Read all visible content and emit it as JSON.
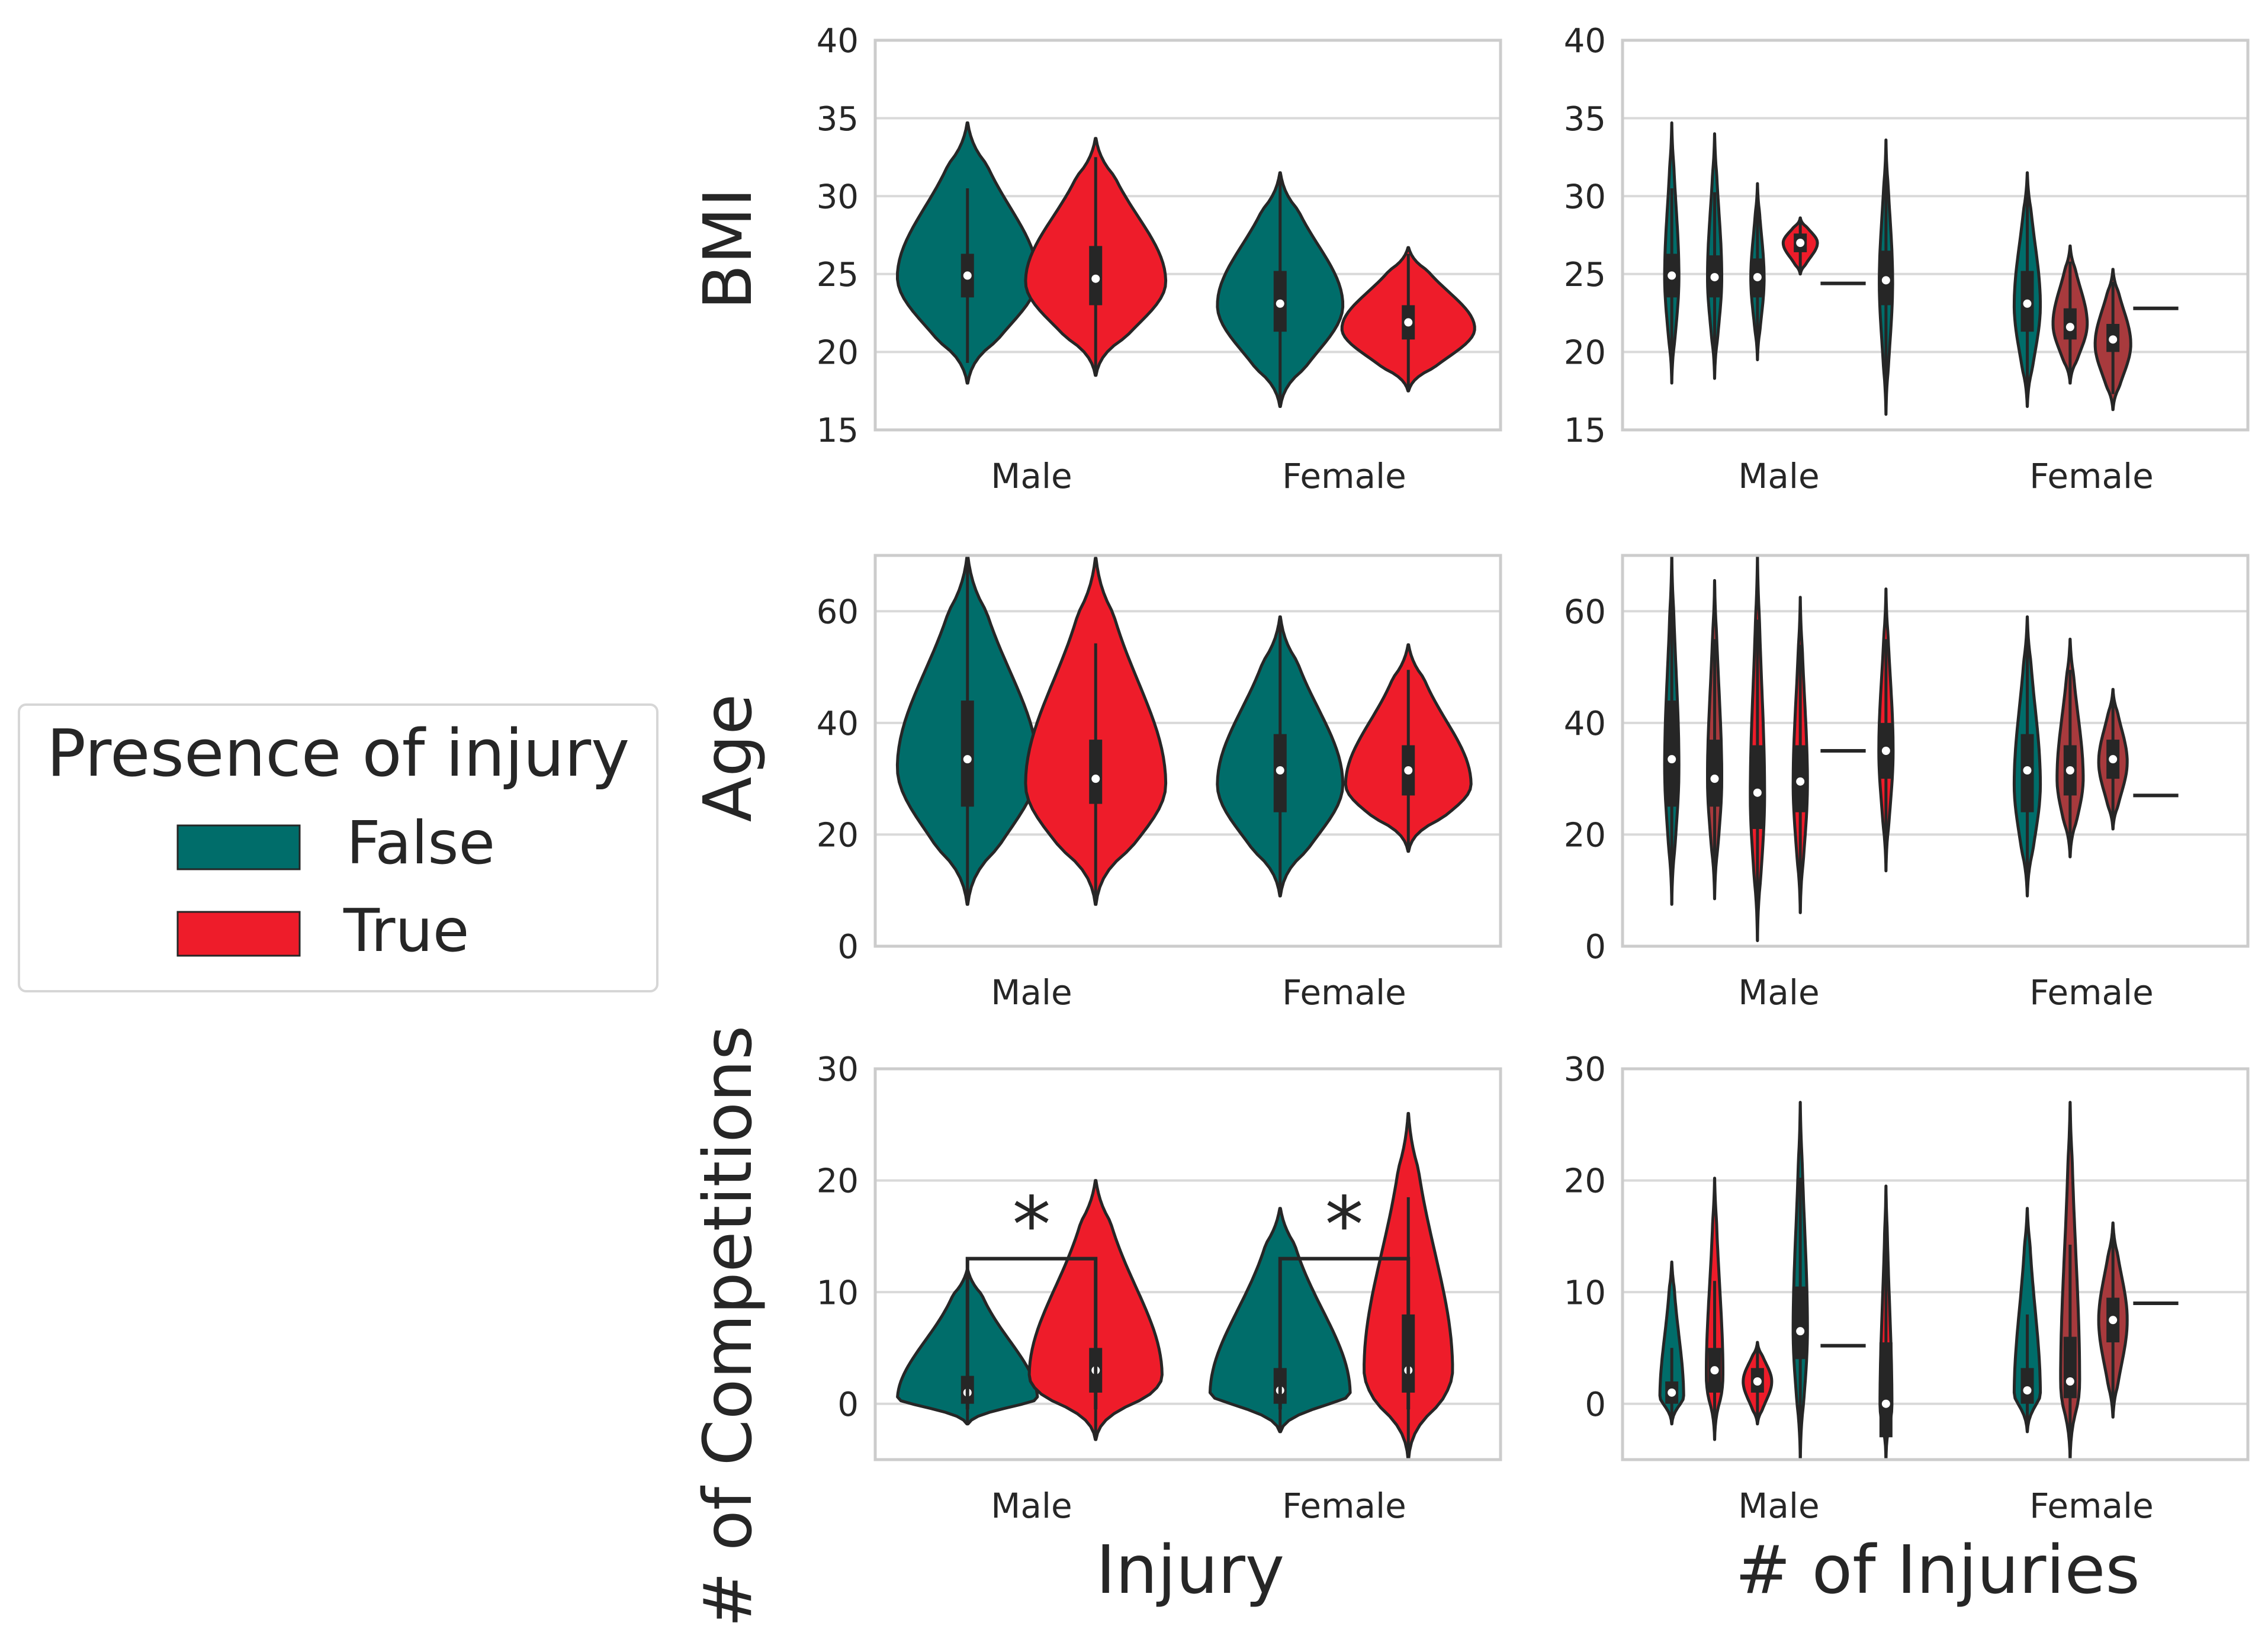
{
  "figure": {
    "colors": {
      "false": "#006d6a",
      "true": "#ee1c2a",
      "mixed": "#a83a3d",
      "grid": "#d9d9d9",
      "axis_frame": "#cccccc",
      "text": "#262626",
      "violin_edge": "#262626"
    },
    "legend": {
      "title": "Presence of injury",
      "items": [
        {
          "label": "False",
          "color_key": "false"
        },
        {
          "label": "True",
          "color_key": "true"
        }
      ]
    },
    "column_labels": [
      "Injury",
      "# of Injuries"
    ],
    "row_labels": [
      "BMI",
      "Age",
      "# of Competitions"
    ]
  },
  "chart_data": [
    {
      "type": "violin",
      "row": 0,
      "col": 0,
      "ylabel": "BMI",
      "xlabel": "",
      "categories": [
        "Male",
        "Female"
      ],
      "ylim": [
        15,
        40
      ],
      "yticks": [
        15,
        20,
        25,
        30,
        35,
        40
      ],
      "series": [
        {
          "name": "False",
          "color_key": "false",
          "values": [
            {
              "category": "Male",
              "min": 18,
              "max": 34.7,
              "mode": 24.8,
              "width": 0.95,
              "q1": 23.5,
              "median": 24.9,
              "q3": 26.3
            },
            {
              "category": "Female",
              "min": 16.5,
              "max": 31.5,
              "mode": 23,
              "width": 0.85,
              "q1": 21.3,
              "median": 23.1,
              "q3": 25.2
            }
          ]
        },
        {
          "name": "True",
          "color_key": "true",
          "values": [
            {
              "category": "Male",
              "min": 18.5,
              "max": 33.7,
              "mode": 24.5,
              "width": 0.95,
              "q1": 23,
              "median": 24.7,
              "q3": 26.8
            },
            {
              "category": "Female",
              "min": 17.5,
              "max": 26.7,
              "mode": 21.5,
              "width": 0.9,
              "q1": 20.8,
              "median": 21.9,
              "q3": 23
            }
          ]
        }
      ]
    },
    {
      "type": "violin",
      "row": 0,
      "col": 1,
      "ylabel": "",
      "xlabel": "",
      "categories": [
        "Male",
        "Female"
      ],
      "ylim": [
        15,
        40
      ],
      "yticks": [
        15,
        20,
        25,
        30,
        35,
        40
      ],
      "violins": [
        {
          "category": "Male",
          "color_key": "false",
          "min": 18,
          "max": 34.7,
          "mode": 24.8,
          "width": 0.3,
          "q1": 23.5,
          "median": 24.9,
          "q3": 26.3
        },
        {
          "category": "Male",
          "color_key": "false",
          "min": 18.3,
          "max": 34,
          "mode": 24.8,
          "width": 0.3,
          "q1": 23.5,
          "median": 24.8,
          "q3": 26.2
        },
        {
          "category": "Male",
          "color_key": "false",
          "min": 19.5,
          "max": 30.8,
          "mode": 24.7,
          "width": 0.28,
          "q1": 23.5,
          "median": 24.8,
          "q3": 26
        },
        {
          "category": "Male",
          "color_key": "true",
          "min": 25,
          "max": 28.6,
          "mode": 27,
          "width": 0.72,
          "q1": 26.4,
          "median": 27,
          "q3": 27.6
        },
        {
          "category": "Male",
          "color_key": "true",
          "single_value": 24.4
        },
        {
          "category": "Male",
          "color_key": "false",
          "min": 16,
          "max": 33.6,
          "mode": 24.5,
          "width": 0.28,
          "q1": 23,
          "median": 24.6,
          "q3": 26.5
        },
        {
          "category": "Female",
          "color_key": "false",
          "min": 16.5,
          "max": 31.5,
          "mode": 23,
          "width": 0.55,
          "q1": 21.3,
          "median": 23.1,
          "q3": 25.2
        },
        {
          "category": "Female",
          "color_key": "mixed",
          "min": 18,
          "max": 26.8,
          "mode": 21.8,
          "width": 0.72,
          "q1": 20.8,
          "median": 21.6,
          "q3": 22.8
        },
        {
          "category": "Female",
          "color_key": "mixed",
          "min": 16.3,
          "max": 25.3,
          "mode": 20.5,
          "width": 0.75,
          "q1": 20,
          "median": 20.8,
          "q3": 21.8
        },
        {
          "category": "Female",
          "color_key": "mixed",
          "single_value": 22.8
        }
      ]
    },
    {
      "type": "violin",
      "row": 1,
      "col": 0,
      "ylabel": "Age",
      "xlabel": "",
      "categories": [
        "Male",
        "Female"
      ],
      "ylim": [
        0,
        70
      ],
      "yticks": [
        0,
        20,
        40,
        60
      ],
      "series": [
        {
          "name": "False",
          "color_key": "false",
          "values": [
            {
              "category": "Male",
              "min": 7.5,
              "max": 70,
              "mode": 32,
              "width": 0.95,
              "q1": 25,
              "median": 33.5,
              "q3": 44
            },
            {
              "category": "Female",
              "min": 9,
              "max": 59,
              "mode": 29,
              "width": 0.85,
              "q1": 24,
              "median": 31.5,
              "q3": 38
            }
          ]
        },
        {
          "name": "True",
          "color_key": "true",
          "values": [
            {
              "category": "Male",
              "min": 7.5,
              "max": 69.5,
              "mode": 29,
              "width": 0.95,
              "q1": 25.5,
              "median": 30,
              "q3": 37
            },
            {
              "category": "Female",
              "min": 17,
              "max": 54,
              "mode": 29,
              "width": 0.85,
              "q1": 27,
              "median": 31.5,
              "q3": 36
            }
          ]
        }
      ]
    },
    {
      "type": "violin",
      "row": 1,
      "col": 1,
      "ylabel": "",
      "xlabel": "",
      "categories": [
        "Male",
        "Female"
      ],
      "ylim": [
        0,
        70
      ],
      "yticks": [
        0,
        20,
        40,
        60
      ],
      "violins": [
        {
          "category": "Male",
          "color_key": "false",
          "min": 7.5,
          "max": 70,
          "mode": 32,
          "width": 0.3,
          "q1": 25,
          "median": 33.5,
          "q3": 44
        },
        {
          "category": "Male",
          "color_key": "mixed",
          "min": 8.5,
          "max": 65.5,
          "mode": 30,
          "width": 0.3,
          "q1": 25,
          "median": 30,
          "q3": 37
        },
        {
          "category": "Male",
          "color_key": "true",
          "min": 1,
          "max": 70,
          "mode": 27,
          "width": 0.3,
          "q1": 21,
          "median": 27.5,
          "q3": 36
        },
        {
          "category": "Male",
          "color_key": "true",
          "min": 6,
          "max": 62.5,
          "mode": 29,
          "width": 0.3,
          "q1": 24,
          "median": 29.5,
          "q3": 36
        },
        {
          "category": "Male",
          "color_key": "true",
          "single_value": 35
        },
        {
          "category": "Male",
          "color_key": "true",
          "min": 13.5,
          "max": 64,
          "mode": 35,
          "width": 0.3,
          "q1": 30,
          "median": 35,
          "q3": 40
        },
        {
          "category": "Female",
          "color_key": "false",
          "min": 9,
          "max": 59,
          "mode": 29,
          "width": 0.55,
          "q1": 24,
          "median": 31.5,
          "q3": 38
        },
        {
          "category": "Female",
          "color_key": "mixed",
          "min": 16,
          "max": 55,
          "mode": 30,
          "width": 0.55,
          "q1": 27,
          "median": 31.5,
          "q3": 36
        },
        {
          "category": "Female",
          "color_key": "mixed",
          "min": 21,
          "max": 46,
          "mode": 33,
          "width": 0.6,
          "q1": 30,
          "median": 33.5,
          "q3": 37
        },
        {
          "category": "Female",
          "color_key": "mixed",
          "single_value": 27
        }
      ]
    },
    {
      "type": "violin",
      "row": 2,
      "col": 0,
      "ylabel": "# of Competitions",
      "xlabel": "Injury",
      "categories": [
        "Male",
        "Female"
      ],
      "ylim": [
        -5,
        30
      ],
      "yticks": [
        0,
        10,
        20,
        30
      ],
      "series": [
        {
          "name": "False",
          "color_key": "false",
          "values": [
            {
              "category": "Male",
              "min": -1.8,
              "max": 12,
              "mode": 0.3,
              "width": 0.95,
              "q1": 0,
              "median": 1,
              "q3": 2.5
            },
            {
              "category": "Female",
              "min": -2.5,
              "max": 17.5,
              "mode": 0.8,
              "width": 0.95,
              "q1": 0,
              "median": 1.2,
              "q3": 3.2
            }
          ]
        },
        {
          "name": "True",
          "color_key": "true",
          "values": [
            {
              "category": "Male",
              "min": -3.2,
              "max": 20,
              "mode": 2.5,
              "width": 0.9,
              "q1": 1,
              "median": 3,
              "q3": 5
            },
            {
              "category": "Female",
              "min": -5,
              "max": 26,
              "mode": 3,
              "width": 0.6,
              "q1": 1,
              "median": 3,
              "q3": 8
            }
          ]
        }
      ],
      "annotations": [
        {
          "text": "*",
          "category": "Male",
          "bar_y": 13
        },
        {
          "text": "*",
          "category": "Female",
          "bar_y": 13
        }
      ]
    },
    {
      "type": "violin",
      "row": 2,
      "col": 1,
      "ylabel": "",
      "xlabel": "# of Injuries",
      "categories": [
        "Male",
        "Female"
      ],
      "ylim": [
        -5,
        30
      ],
      "yticks": [
        0,
        10,
        20,
        30
      ],
      "violins": [
        {
          "category": "Male",
          "color_key": "false",
          "min": -1.8,
          "max": 12.7,
          "mode": 0.5,
          "width": 0.5,
          "q1": 0,
          "median": 1,
          "q3": 2
        },
        {
          "category": "Male",
          "color_key": "true",
          "min": -3.2,
          "max": 20.2,
          "mode": 2.5,
          "width": 0.35,
          "q1": 1,
          "median": 3,
          "q3": 5
        },
        {
          "category": "Male",
          "color_key": "true",
          "min": -1.8,
          "max": 5.5,
          "mode": 2,
          "width": 0.6,
          "q1": 1,
          "median": 2,
          "q3": 3.2
        },
        {
          "category": "Male",
          "color_key": "false",
          "min": -5,
          "max": 27,
          "mode": 6.5,
          "width": 0.3,
          "q1": 4,
          "median": 6.5,
          "q3": 10.5
        },
        {
          "category": "Male",
          "color_key": "true",
          "single_value": 5.2
        },
        {
          "category": "Male",
          "color_key": "true",
          "min": -5,
          "max": 19.5,
          "mode": 0,
          "width": 0.25,
          "q1": -3,
          "median": 0,
          "q3": 5.5
        },
        {
          "category": "Female",
          "color_key": "false",
          "min": -2.5,
          "max": 17.5,
          "mode": 0.8,
          "width": 0.55,
          "q1": 0,
          "median": 1.2,
          "q3": 3.2
        },
        {
          "category": "Female",
          "color_key": "mixed",
          "min": -5,
          "max": 27,
          "mode": 2,
          "width": 0.4,
          "q1": 0.5,
          "median": 2,
          "q3": 6
        },
        {
          "category": "Female",
          "color_key": "mixed",
          "min": -1.2,
          "max": 16.2,
          "mode": 7.5,
          "width": 0.6,
          "q1": 5.5,
          "median": 7.5,
          "q3": 9.5
        },
        {
          "category": "Female",
          "color_key": "mixed",
          "single_value": 9
        }
      ]
    }
  ]
}
